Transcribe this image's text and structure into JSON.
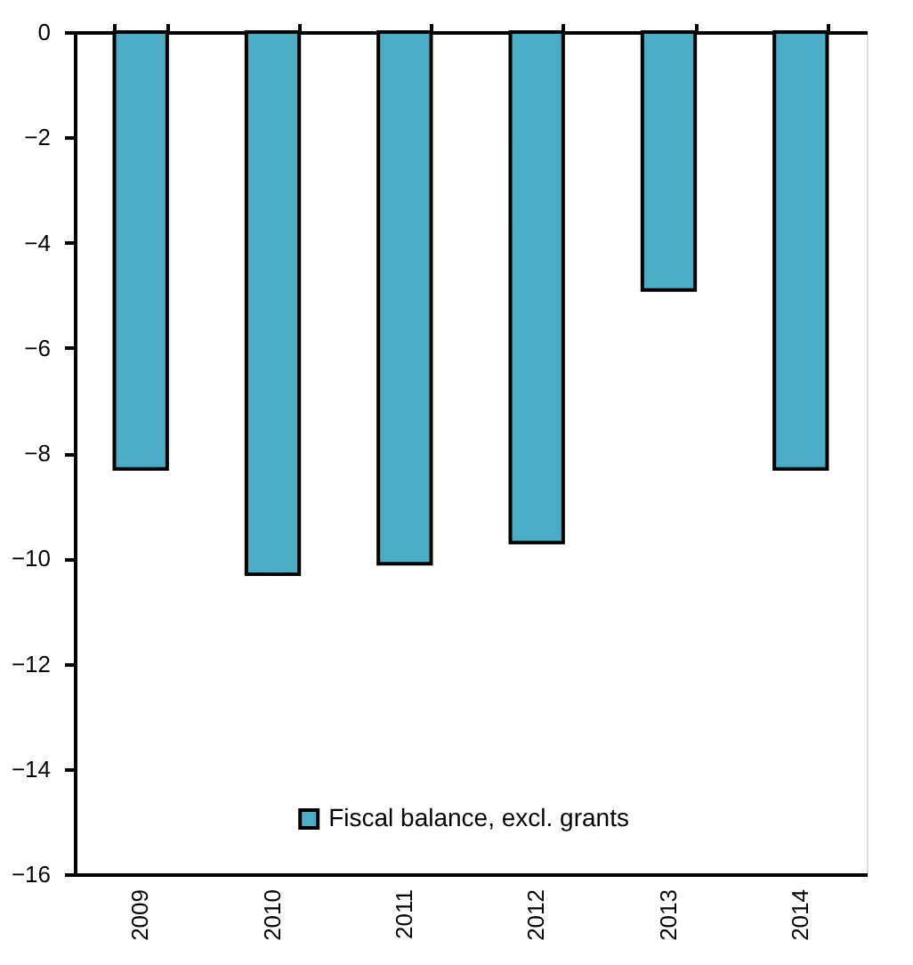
{
  "chart_data": {
    "type": "bar",
    "categories": [
      "2009",
      "2010",
      "2011",
      "2012",
      "2013",
      "2014"
    ],
    "series": [
      {
        "name": "Fiscal balance, excl. grants",
        "color": "#4bacc6",
        "values": [
          -8.3,
          -10.3,
          -10.1,
          -9.7,
          -4.9,
          -8.3
        ]
      }
    ],
    "ylim": [
      -16,
      0
    ],
    "yticks": [
      -16,
      -14,
      -12,
      -10,
      -8,
      -6,
      -4,
      -2,
      0
    ],
    "grid": false,
    "legend": "bottom"
  }
}
